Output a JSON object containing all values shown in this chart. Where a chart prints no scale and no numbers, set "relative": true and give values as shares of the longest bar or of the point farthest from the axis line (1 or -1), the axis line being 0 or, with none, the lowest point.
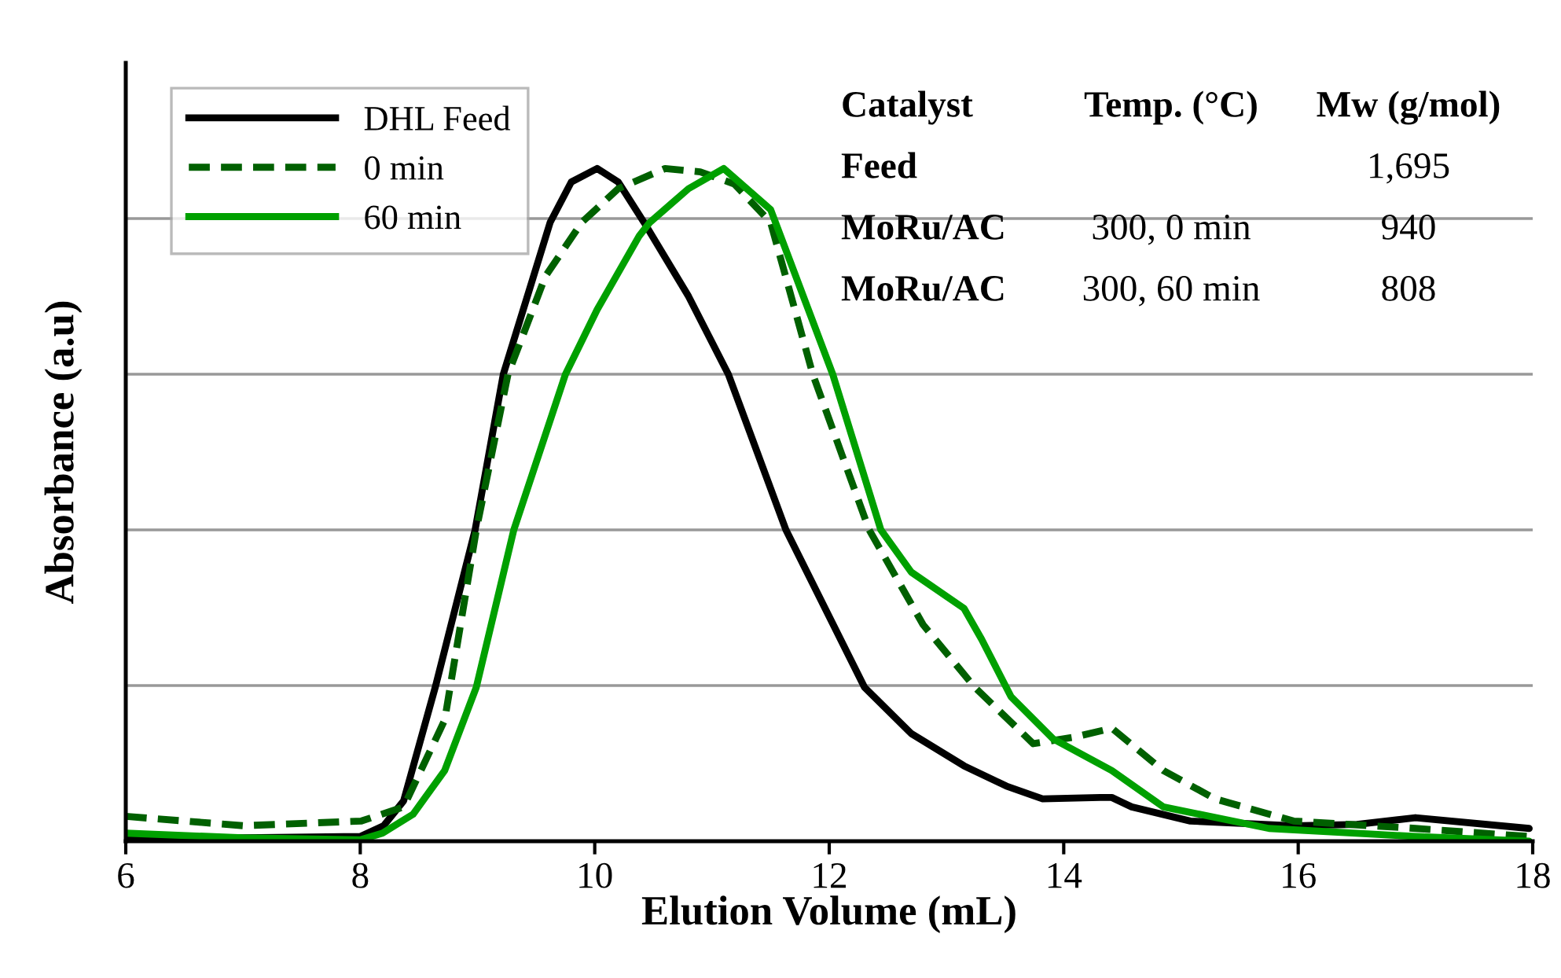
{
  "chart_data": {
    "type": "line",
    "relative": true,
    "xlabel": "Elution Volume (mL)",
    "ylabel": "Absorbance (a.u)",
    "xlim": [
      6,
      18
    ],
    "xticks": [
      6,
      8,
      10,
      12,
      14,
      16,
      18
    ],
    "grid": "y",
    "legend": "top left",
    "tick_labels": "x",
    "marker": "none",
    "series": [
      {
        "name": "DHL Feed",
        "color": "#000000",
        "line_style": "solid",
        "x": [
          6,
          7,
          8,
          8.2,
          8.37,
          8.64,
          8.98,
          9.22,
          9.62,
          9.8,
          10.02,
          10.2,
          10.42,
          10.8,
          11.14,
          11.63,
          12.3,
          12.7,
          13.15,
          13.51,
          13.82,
          14.31,
          14.41,
          14.58,
          15.08,
          15.96,
          16.5,
          17.0,
          17.97
        ],
        "values": [
          0.007,
          0.005,
          0.007,
          0.023,
          0.06,
          0.229,
          0.463,
          0.694,
          0.92,
          0.98,
          1.0,
          0.98,
          0.92,
          0.81,
          0.694,
          0.463,
          0.229,
          0.16,
          0.112,
          0.082,
          0.063,
          0.065,
          0.065,
          0.051,
          0.03,
          0.023,
          0.025,
          0.035,
          0.019
        ]
      },
      {
        "name": "0 min",
        "color": "#006000",
        "line_style": "dashed",
        "x": [
          6,
          7,
          8.01,
          8.37,
          8.72,
          8.99,
          9.26,
          9.58,
          9.89,
          10.2,
          10.6,
          10.9,
          11.19,
          11.5,
          11.86,
          12.34,
          12.8,
          13.24,
          13.74,
          14.1,
          14.41,
          14.85,
          15.29,
          15.96,
          17.0,
          17.97
        ],
        "values": [
          0.037,
          0.023,
          0.03,
          0.051,
          0.18,
          0.463,
          0.694,
          0.84,
          0.92,
          0.97,
          1.0,
          0.995,
          0.977,
          0.92,
          0.694,
          0.463,
          0.322,
          0.229,
          0.145,
          0.155,
          0.168,
          0.105,
          0.063,
          0.03,
          0.019,
          0.007
        ]
      },
      {
        "name": "60 min",
        "color": "#00a000",
        "line_style": "solid",
        "x": [
          6,
          7,
          8,
          8.19,
          8.45,
          8.72,
          8.99,
          9.31,
          9.75,
          10.02,
          10.38,
          10.47,
          10.8,
          11.1,
          11.5,
          12.03,
          12.44,
          12.7,
          13.15,
          13.3,
          13.55,
          13.91,
          14.41,
          14.85,
          15.75,
          17.0,
          17.97
        ],
        "values": [
          0.012,
          0.005,
          0.002,
          0.012,
          0.04,
          0.105,
          0.229,
          0.463,
          0.694,
          0.79,
          0.9,
          0.92,
          0.97,
          1.0,
          0.939,
          0.694,
          0.463,
          0.4,
          0.346,
          0.3,
          0.215,
          0.152,
          0.105,
          0.051,
          0.019,
          0.007,
          0.0
        ]
      }
    ],
    "annotations": [
      "Catalyst",
      "Temp. (°C)",
      "Mw (g/mol)",
      "Feed",
      "1,695",
      "MoRu/AC",
      "300, 0 min",
      "940",
      "MoRu/AC",
      "300, 60 min",
      "808"
    ]
  }
}
